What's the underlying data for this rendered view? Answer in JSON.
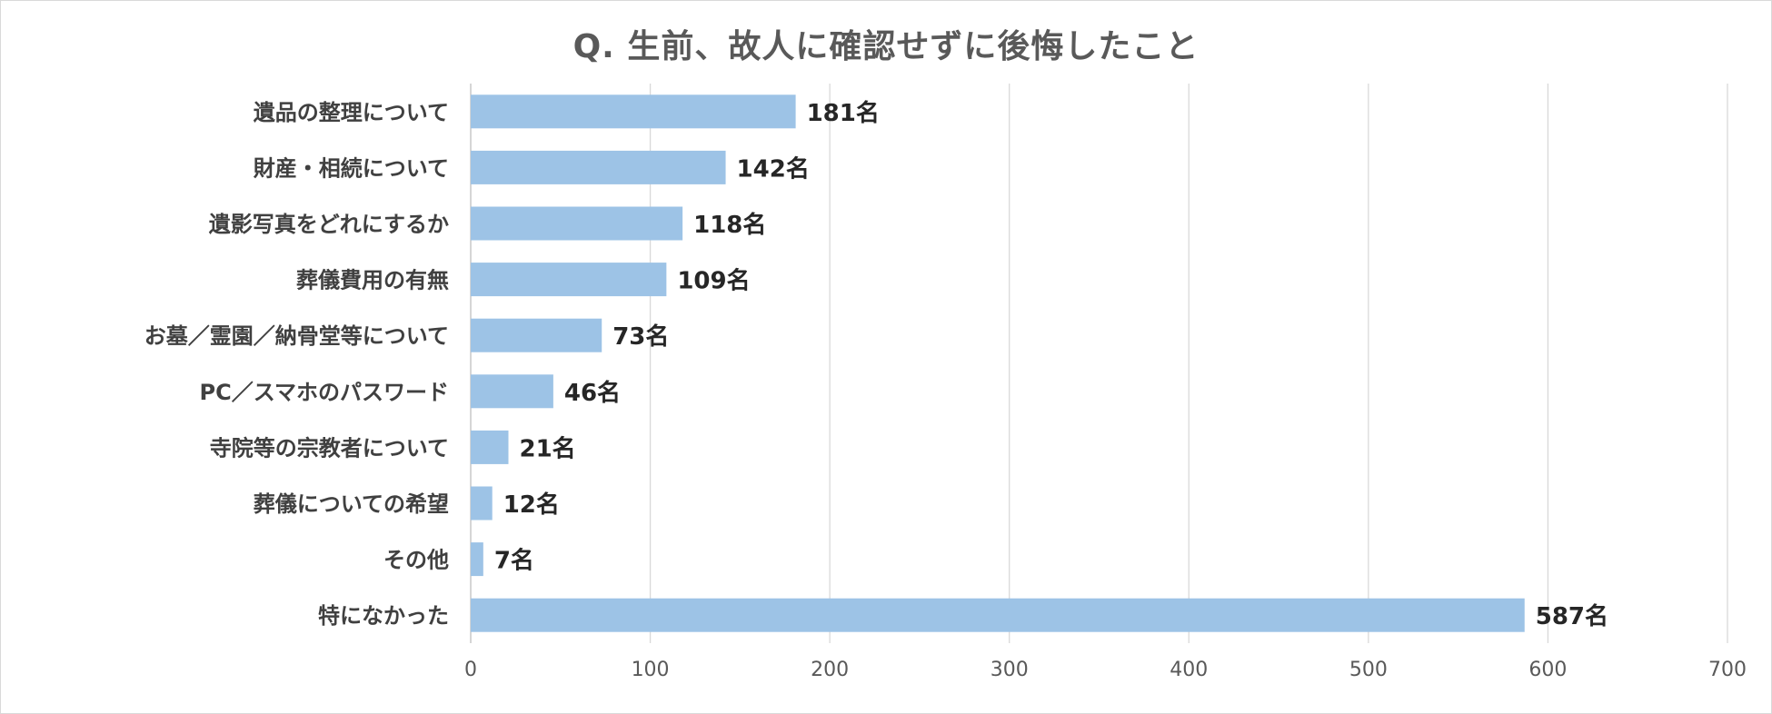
{
  "chart_data": {
    "type": "bar",
    "orientation": "horizontal",
    "title": "Q. 生前、故人に確認せずに後悔したこと",
    "categories": [
      "遺品の整理について",
      "財産・相続について",
      "遺影写真をどれにするか",
      "葬儀費用の有無",
      "お墓／霊園／納骨堂等について",
      "PC／スマホのパスワード",
      "寺院等の宗教者について",
      "葬儀についての希望",
      "その他",
      "特になかった"
    ],
    "values": [
      181,
      142,
      118,
      109,
      73,
      46,
      21,
      12,
      7,
      587
    ],
    "data_labels": [
      "181名",
      "142名",
      "118名",
      "109名",
      "73名",
      "46名",
      "21名",
      "12名",
      "7名",
      "587名"
    ],
    "xlim": [
      0,
      700
    ],
    "xticks": [
      0,
      100,
      200,
      300,
      400,
      500,
      600,
      700
    ],
    "xtick_labels": [
      "0",
      "100",
      "200",
      "300",
      "400",
      "500",
      "600",
      "700"
    ],
    "grid": "vertical",
    "legend": "none",
    "bar_color": "#9dc3e6"
  }
}
